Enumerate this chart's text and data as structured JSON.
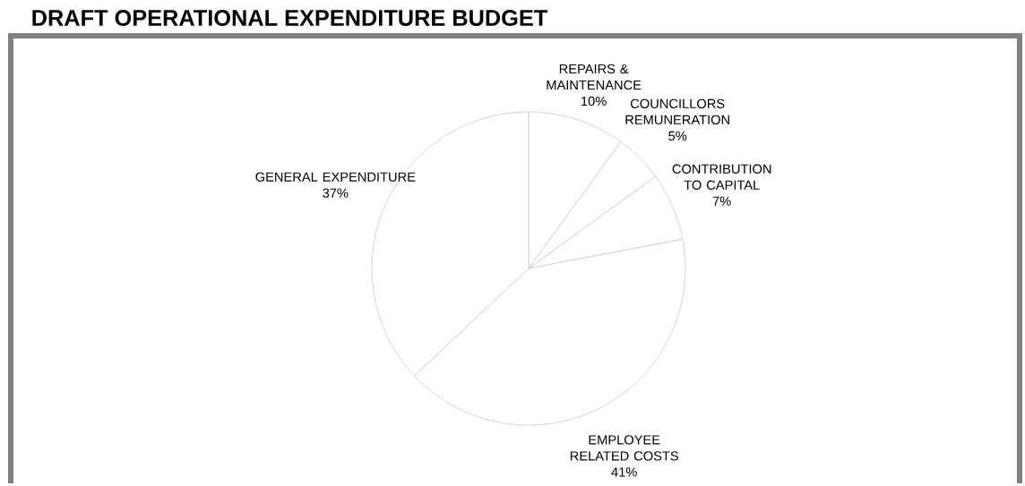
{
  "chart_data": {
    "type": "pie",
    "title": "DRAFT OPERATIONAL  EXPENDITURE BUDGET",
    "categories": [
      "REPAIRS & MAINTENANCE",
      "COUNCILLORS REMUNERATION",
      "CONTRIBUTION TO CAPITAL",
      "EMPLOYEE RELATED COSTS",
      "GENERAL EXPENDITURE"
    ],
    "values": [
      10,
      5,
      7,
      41,
      37
    ],
    "value_labels": [
      "10%",
      "5%",
      "7%",
      "41%",
      "37%"
    ],
    "colors": [
      "#ffffff",
      "#ffffff",
      "#ffffff",
      "#ffffff",
      "#ffffff"
    ]
  }
}
